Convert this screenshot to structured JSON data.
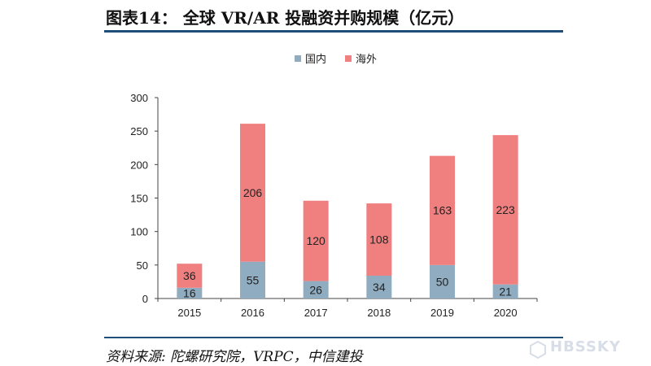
{
  "header": {
    "title": "图表14： 全球 VR/AR 投融资并购规模（亿元）"
  },
  "footer": {
    "source": "资料来源: 陀螺研究院，VRPC，中信建投",
    "watermark": "HBSSKY"
  },
  "colors": {
    "rule": "#1f4e79",
    "domestic": "#8facc0",
    "overseas": "#f08080"
  },
  "chart_data": {
    "type": "bar",
    "stacked": true,
    "categories": [
      "2015",
      "2016",
      "2017",
      "2018",
      "2019",
      "2020"
    ],
    "series": [
      {
        "name": "国内",
        "values": [
          16,
          55,
          26,
          34,
          50,
          21
        ]
      },
      {
        "name": "海外",
        "values": [
          36,
          206,
          120,
          108,
          163,
          223
        ]
      }
    ],
    "ylim": [
      0,
      300
    ],
    "yticks": [
      0,
      50,
      100,
      150,
      200,
      250,
      300
    ],
    "grid": false,
    "legend": "top-center",
    "data_labels": true
  }
}
